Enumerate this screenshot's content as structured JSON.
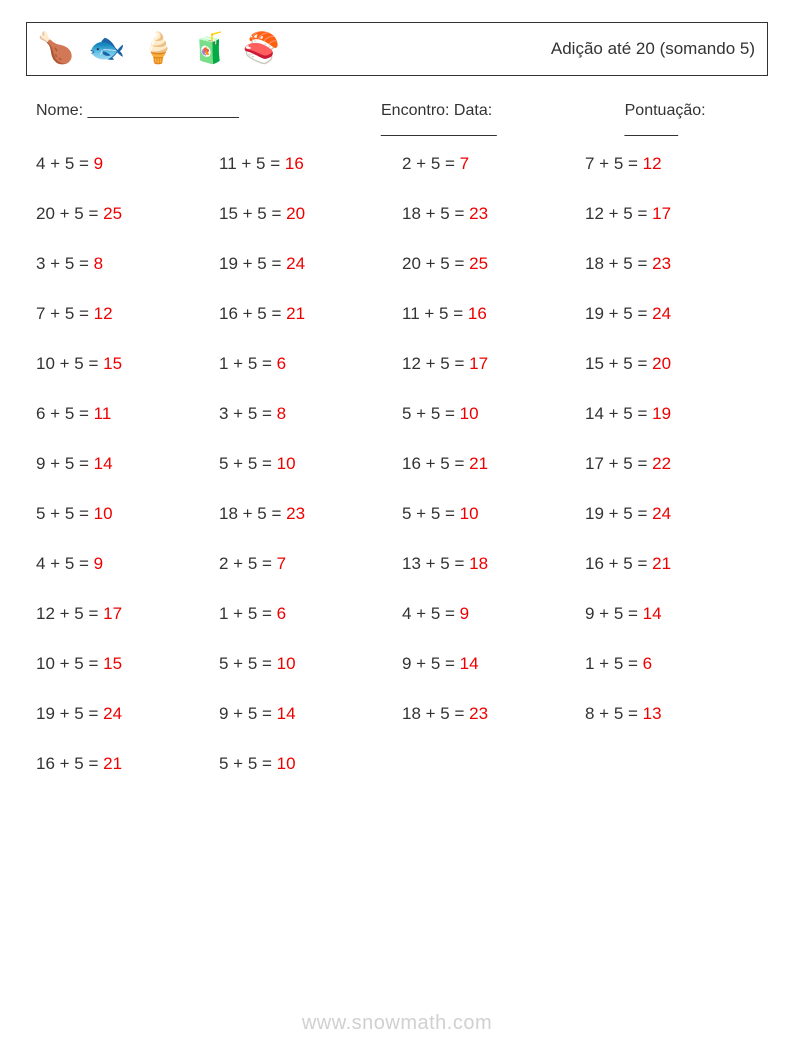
{
  "colors": {
    "text": "#333333",
    "answer": "#ee0000",
    "border": "#333333",
    "background": "#ffffff",
    "watermark": "#d0d0d0"
  },
  "typography": {
    "font_family": "Arial, Helvetica, sans-serif",
    "title_fontsize": 17,
    "meta_fontsize": 16,
    "cell_fontsize": 17,
    "icon_fontsize": 30,
    "watermark_fontsize": 20
  },
  "layout": {
    "columns": 4,
    "rows": 13,
    "row_gap": 30,
    "column_gap": 10
  },
  "header": {
    "icons": [
      "🍗",
      "🐟",
      "🍦",
      "🧃",
      "🍣"
    ],
    "title": "Adição até 20 (somando 5)"
  },
  "meta": {
    "name_label": "Nome: _________________",
    "encounter_label": "Encontro: Data: _____________",
    "score_label": "Pontuação: ______"
  },
  "problems": [
    [
      {
        "a": 4,
        "b": 5,
        "ans": 9
      },
      {
        "a": 11,
        "b": 5,
        "ans": 16
      },
      {
        "a": 2,
        "b": 5,
        "ans": 7
      },
      {
        "a": 7,
        "b": 5,
        "ans": 12
      }
    ],
    [
      {
        "a": 20,
        "b": 5,
        "ans": 25
      },
      {
        "a": 15,
        "b": 5,
        "ans": 20
      },
      {
        "a": 18,
        "b": 5,
        "ans": 23
      },
      {
        "a": 12,
        "b": 5,
        "ans": 17
      }
    ],
    [
      {
        "a": 3,
        "b": 5,
        "ans": 8
      },
      {
        "a": 19,
        "b": 5,
        "ans": 24
      },
      {
        "a": 20,
        "b": 5,
        "ans": 25
      },
      {
        "a": 18,
        "b": 5,
        "ans": 23
      }
    ],
    [
      {
        "a": 7,
        "b": 5,
        "ans": 12
      },
      {
        "a": 16,
        "b": 5,
        "ans": 21
      },
      {
        "a": 11,
        "b": 5,
        "ans": 16
      },
      {
        "a": 19,
        "b": 5,
        "ans": 24
      }
    ],
    [
      {
        "a": 10,
        "b": 5,
        "ans": 15
      },
      {
        "a": 1,
        "b": 5,
        "ans": 6
      },
      {
        "a": 12,
        "b": 5,
        "ans": 17
      },
      {
        "a": 15,
        "b": 5,
        "ans": 20
      }
    ],
    [
      {
        "a": 6,
        "b": 5,
        "ans": 11
      },
      {
        "a": 3,
        "b": 5,
        "ans": 8
      },
      {
        "a": 5,
        "b": 5,
        "ans": 10
      },
      {
        "a": 14,
        "b": 5,
        "ans": 19
      }
    ],
    [
      {
        "a": 9,
        "b": 5,
        "ans": 14
      },
      {
        "a": 5,
        "b": 5,
        "ans": 10
      },
      {
        "a": 16,
        "b": 5,
        "ans": 21
      },
      {
        "a": 17,
        "b": 5,
        "ans": 22
      }
    ],
    [
      {
        "a": 5,
        "b": 5,
        "ans": 10
      },
      {
        "a": 18,
        "b": 5,
        "ans": 23
      },
      {
        "a": 5,
        "b": 5,
        "ans": 10
      },
      {
        "a": 19,
        "b": 5,
        "ans": 24
      }
    ],
    [
      {
        "a": 4,
        "b": 5,
        "ans": 9
      },
      {
        "a": 2,
        "b": 5,
        "ans": 7
      },
      {
        "a": 13,
        "b": 5,
        "ans": 18
      },
      {
        "a": 16,
        "b": 5,
        "ans": 21
      }
    ],
    [
      {
        "a": 12,
        "b": 5,
        "ans": 17
      },
      {
        "a": 1,
        "b": 5,
        "ans": 6
      },
      {
        "a": 4,
        "b": 5,
        "ans": 9
      },
      {
        "a": 9,
        "b": 5,
        "ans": 14
      }
    ],
    [
      {
        "a": 10,
        "b": 5,
        "ans": 15
      },
      {
        "a": 5,
        "b": 5,
        "ans": 10
      },
      {
        "a": 9,
        "b": 5,
        "ans": 14
      },
      {
        "a": 1,
        "b": 5,
        "ans": 6
      }
    ],
    [
      {
        "a": 19,
        "b": 5,
        "ans": 24
      },
      {
        "a": 9,
        "b": 5,
        "ans": 14
      },
      {
        "a": 18,
        "b": 5,
        "ans": 23
      },
      {
        "a": 8,
        "b": 5,
        "ans": 13
      }
    ],
    [
      {
        "a": 16,
        "b": 5,
        "ans": 21
      },
      {
        "a": 5,
        "b": 5,
        "ans": 10
      }
    ]
  ],
  "watermark": "www.snowmath.com"
}
